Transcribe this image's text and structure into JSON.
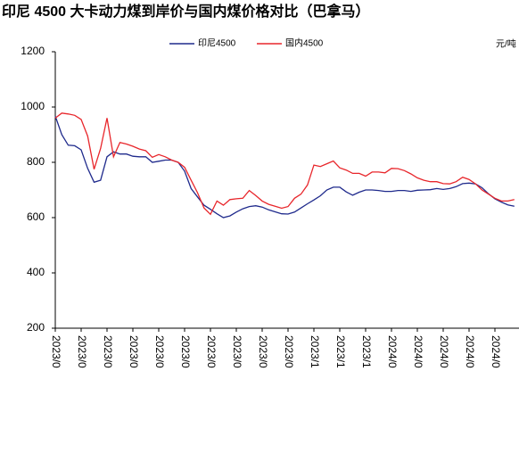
{
  "chart_data": {
    "type": "line",
    "title": "印尼 4500 大卡动力煤到岸价与国内煤价格对比（巴拿马）",
    "unit_label": "元/吨",
    "categories": [
      "2023/0",
      null,
      null,
      null,
      "2023/0",
      null,
      null,
      null,
      "2023/0",
      null,
      null,
      null,
      "2023/0",
      null,
      null,
      null,
      "2023/0",
      null,
      null,
      null,
      "2023/0",
      null,
      null,
      null,
      "2023/0",
      null,
      null,
      null,
      "2023/0",
      null,
      null,
      null,
      "2023/0",
      null,
      null,
      null,
      "2023/0",
      null,
      null,
      null,
      "2023/1",
      null,
      null,
      null,
      "2023/1",
      null,
      null,
      null,
      "2023/1",
      null,
      null,
      null,
      "2024/0",
      null,
      null,
      null,
      "2024/0",
      null,
      null,
      null,
      "2024/0",
      null,
      null,
      null,
      "2024/0",
      null,
      null,
      null,
      "2024/0",
      null,
      null,
      null
    ],
    "series": [
      {
        "name": "印尼4500",
        "color": "#1f2a8c",
        "values": [
          967,
          900,
          862,
          860,
          845,
          778,
          728,
          735,
          820,
          838,
          830,
          830,
          822,
          820,
          820,
          800,
          804,
          808,
          808,
          800,
          768,
          705,
          675,
          645,
          630,
          614,
          600,
          606,
          620,
          632,
          640,
          643,
          638,
          628,
          621,
          614,
          613,
          620,
          635,
          650,
          664,
          679,
          700,
          710,
          710,
          693,
          681,
          692,
          700,
          700,
          698,
          695,
          695,
          698,
          698,
          695,
          699,
          700,
          701,
          705,
          702,
          705,
          712,
          723,
          725,
          722,
          708,
          686,
          668,
          656,
          646,
          641
        ]
      },
      {
        "name": "国内4500",
        "color": "#e8262b",
        "values": [
          960,
          978,
          975,
          970,
          955,
          895,
          775,
          850,
          960,
          820,
          872,
          866,
          858,
          848,
          842,
          818,
          828,
          820,
          808,
          800,
          782,
          735,
          690,
          635,
          612,
          660,
          645,
          665,
          668,
          670,
          698,
          680,
          660,
          648,
          641,
          634,
          640,
          670,
          685,
          718,
          790,
          785,
          795,
          805,
          780,
          772,
          760,
          760,
          750,
          765,
          765,
          762,
          778,
          777,
          770,
          758,
          744,
          735,
          730,
          730,
          723,
          722,
          730,
          746,
          738,
          722,
          700,
          685,
          670,
          660,
          660,
          665
        ]
      }
    ],
    "ylim": [
      200,
      1200
    ],
    "yticks": [
      200,
      400,
      600,
      800,
      1000,
      1200
    ],
    "legend": "top"
  }
}
